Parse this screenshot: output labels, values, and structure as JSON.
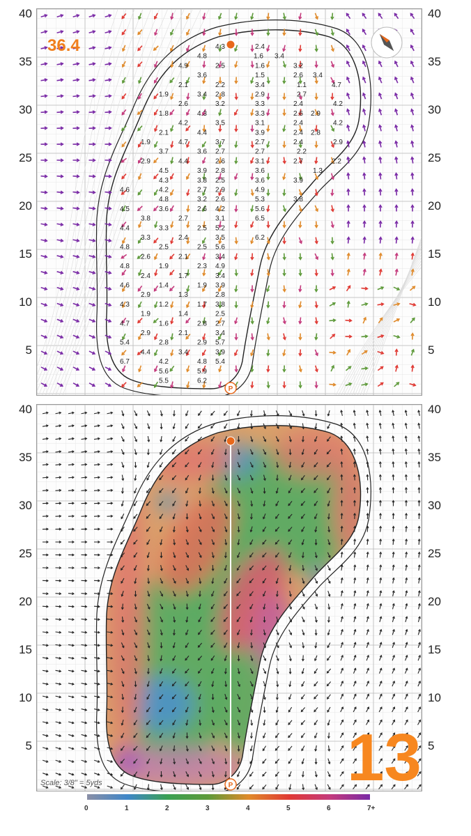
{
  "top_panel": {
    "distance_readout": "36.4",
    "y_axis_ticks": [
      "40",
      "35",
      "30",
      "25",
      "20",
      "15",
      "10",
      "5"
    ],
    "slope_readings": [
      [
        "4.3",
        "2.4"
      ],
      [
        "4.8",
        "1.6",
        "3.4"
      ],
      [
        "4.9",
        "2.5",
        "1.6",
        "3.2"
      ],
      [
        "3.6",
        "1.5",
        "2.6",
        "3.4"
      ],
      [
        "2.1",
        "2.2",
        "3.4",
        "1.1",
        "4.7"
      ],
      [
        "1.9",
        "3.4",
        "2.8",
        "2.9",
        "2.7"
      ],
      [
        "2.6",
        "3.2",
        "3.3",
        "2.4",
        "4.2"
      ],
      [
        "1.8",
        "4.3",
        "3.3",
        "2.6",
        "2.9"
      ],
      [
        "4.2",
        "3.5",
        "3.1",
        "2.4",
        "4.2"
      ],
      [
        "2.1",
        "4.4",
        "3.9",
        "2.4",
        "2.8"
      ],
      [
        "1.9",
        "4.7",
        "3.7",
        "2.7",
        "2.4",
        "2.9"
      ],
      [
        "3.7",
        "3.6",
        "2.7",
        "2.7",
        "2.2"
      ],
      [
        "2.9",
        "4.4",
        "2.6",
        "3.1",
        "2.7",
        "2.2"
      ],
      [
        "4.5",
        "3.9",
        "2.8",
        "3.6",
        "1.3"
      ],
      [
        "4.3",
        "3.8",
        "2.5",
        "3.6",
        "3.9"
      ],
      [
        "4.6",
        "4.2",
        "2.7",
        "2.9",
        "4.9"
      ],
      [
        "4.8",
        "3.2",
        "2.6",
        "5.3",
        "3.8"
      ],
      [
        "4.5",
        "3.6",
        "2.6",
        "4.2",
        "5.6"
      ],
      [
        "3.8",
        "2.7",
        "3.1",
        "6.5"
      ],
      [
        "4.4",
        "3.3",
        "2.5",
        "5.2"
      ],
      [
        "3.3",
        "2.4",
        "3.5",
        "6.2"
      ],
      [
        "4.8",
        "2.5",
        "2.5",
        "5.6"
      ],
      [
        "2.6",
        "2.1",
        "3.4"
      ],
      [
        "4.8",
        "1.9",
        "2.3",
        "4.9"
      ],
      [
        "2.4",
        "1.7",
        "3.4"
      ],
      [
        "4.6",
        "1.4",
        "1.9",
        "3.9"
      ],
      [
        "2.9",
        "1.3",
        "2.8"
      ],
      [
        "4.3",
        "1.2",
        "1.7",
        "3.8"
      ],
      [
        "1.9",
        "1.4",
        "2.5"
      ],
      [
        "4.7",
        "1.6",
        "2.8",
        "2.7"
      ],
      [
        "2.9",
        "2.1",
        "3.4"
      ],
      [
        "5.4",
        "2.8",
        "2.9",
        "5.7"
      ],
      [
        "4.4",
        "3.4",
        "3.9"
      ],
      [
        "6.7",
        "4.2",
        "4.8",
        "5.4"
      ],
      [
        "5.6",
        "5.9"
      ],
      [
        "5.5",
        "6.2"
      ]
    ]
  },
  "bottom_panel": {
    "y_axis_ticks": [
      "40",
      "35",
      "30",
      "25",
      "20",
      "15",
      "10",
      "5"
    ],
    "hole_number": "13",
    "scale_text": "Scale: 3/8\" = 5yds"
  },
  "colorbar": {
    "labels": [
      "0",
      "1",
      "2",
      "3",
      "4",
      "5",
      "6",
      "7+"
    ],
    "colors": [
      "#8a8fa6",
      "#3f86c8",
      "#3aa052",
      "#5e9a3a",
      "#e08a2a",
      "#e03a34",
      "#c43a7c",
      "#7a2aa6"
    ]
  },
  "markers": {
    "pin_color": "#e8681a",
    "start_badge": "P"
  }
}
